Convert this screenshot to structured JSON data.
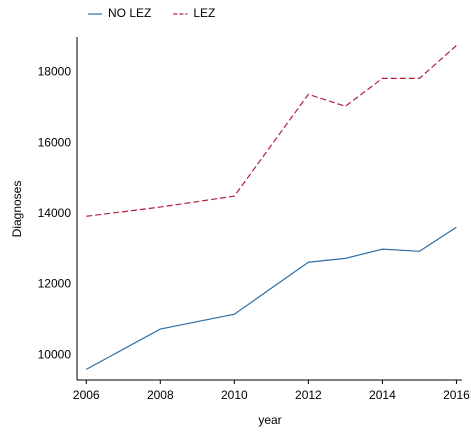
{
  "chart_data": {
    "type": "line",
    "x_label": "year",
    "y_label": "Diagnoses",
    "x": [
      2006,
      2008,
      2010,
      2012,
      2013,
      2014,
      2015,
      2016
    ],
    "series": [
      {
        "name": "NO LEZ",
        "color": "#2f6fa8",
        "dash": "solid",
        "values": [
          9600,
          10740,
          11160,
          12630,
          12740,
          13000,
          12940,
          13620
        ]
      },
      {
        "name": "LEZ",
        "color": "#b3203c",
        "dash": "dashed",
        "values": [
          13930,
          14190,
          14500,
          17380,
          17040,
          17830,
          17830,
          18760
        ]
      }
    ],
    "xlim": [
      2005.75,
      2016.15
    ],
    "xticks": [
      2006,
      2008,
      2010,
      2012,
      2014,
      2016
    ],
    "ylim": [
      9300,
      19000
    ],
    "yticks": [
      10000,
      12000,
      14000,
      16000,
      18000
    ],
    "grid": false,
    "legend": "top-left"
  }
}
